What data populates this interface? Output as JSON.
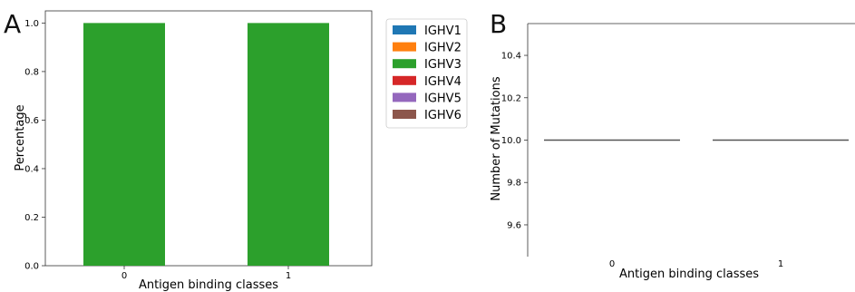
{
  "chart_data": [
    {
      "panel": "A",
      "type": "bar",
      "stacked": true,
      "categories": [
        "0",
        "1"
      ],
      "series": [
        {
          "name": "IGHV1",
          "color": "#1f77b4",
          "values": [
            0,
            0
          ]
        },
        {
          "name": "IGHV2",
          "color": "#ff7f0e",
          "values": [
            0,
            0
          ]
        },
        {
          "name": "IGHV3",
          "color": "#2ca02c",
          "values": [
            1.0,
            1.0
          ]
        },
        {
          "name": "IGHV4",
          "color": "#d62728",
          "values": [
            0,
            0
          ]
        },
        {
          "name": "IGHV5",
          "color": "#9467bd",
          "values": [
            0,
            0
          ]
        },
        {
          "name": "IGHV6",
          "color": "#8c564b",
          "values": [
            0,
            0
          ]
        }
      ],
      "xlabel": "Antigen binding classes",
      "ylabel": "Percentage",
      "ylim": [
        0,
        1.05
      ],
      "yticks": [
        "0.0",
        "0.2",
        "0.4",
        "0.6",
        "0.8",
        "1.0"
      ],
      "legend": "outside-right",
      "grid": false
    },
    {
      "panel": "B",
      "type": "line",
      "categories": [
        "0",
        "1"
      ],
      "values": [
        10.0,
        10.0
      ],
      "line_color": "#555555",
      "xlabel": "Antigen binding classes",
      "ylabel": "Number of Mutations",
      "ylim": [
        9.45,
        10.55
      ],
      "yticks": [
        "9.6",
        "9.8",
        "10.0",
        "10.2",
        "10.4"
      ],
      "grid": false
    }
  ]
}
